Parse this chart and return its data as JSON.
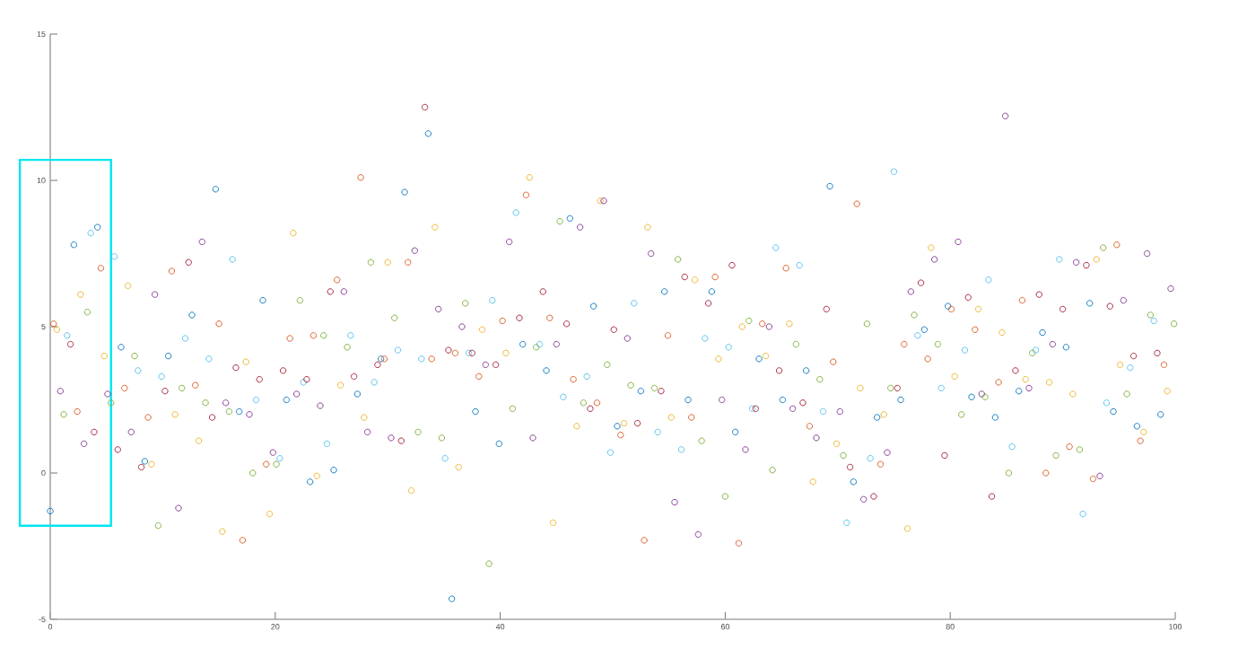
{
  "chart_data": {
    "type": "scatter",
    "marker": "circle",
    "xlim": [
      0,
      100
    ],
    "ylim": [
      -5,
      15
    ],
    "xticks": [
      0,
      20,
      40,
      60,
      80,
      100
    ],
    "yticks": [
      -5,
      0,
      5,
      10,
      15
    ],
    "x": [
      0,
      0.3,
      0.6,
      0.9,
      1.2,
      1.5,
      1.8,
      2.1,
      2.4,
      2.7,
      3,
      3.3,
      3.6,
      3.9,
      4.2,
      4.5,
      4.8,
      5.1,
      5.4,
      5.7,
      6,
      6.3,
      6.6,
      6.9,
      7.2,
      7.5,
      7.8,
      8.1,
      8.4,
      8.7,
      9,
      9.3,
      9.6,
      9.9,
      10.2,
      10.5,
      10.8,
      11.1,
      11.4,
      11.7,
      12,
      12.3,
      12.6,
      12.9,
      13.2,
      13.5,
      13.8,
      14.1,
      14.4,
      14.7,
      15,
      15.3,
      15.6,
      15.9,
      16.2,
      16.5,
      16.8,
      17.1,
      17.4,
      17.7,
      18,
      18.3,
      18.6,
      18.9,
      19.2,
      19.5,
      19.8,
      20.1,
      20.4,
      20.7,
      21,
      21.3,
      21.6,
      21.9,
      22.2,
      22.5,
      22.8,
      23.1,
      23.4,
      23.7,
      24,
      24.3,
      24.6,
      24.9,
      25.2,
      25.5,
      25.8,
      26.1,
      26.4,
      26.7,
      27,
      27.3,
      27.6,
      27.9,
      28.2,
      28.5,
      28.8,
      29.1,
      29.4,
      29.7,
      30,
      30.3,
      30.6,
      30.9,
      31.2,
      31.5,
      31.8,
      32.1,
      32.4,
      32.7,
      33,
      33.3,
      33.6,
      33.9,
      34.2,
      34.5,
      34.8,
      35.1,
      35.4,
      35.7,
      36,
      36.3,
      36.6,
      36.9,
      37.2,
      37.5,
      37.8,
      38.1,
      38.4,
      38.7,
      39,
      39.3,
      39.6,
      39.9,
      40.2,
      40.5,
      40.8,
      41.1,
      41.4,
      41.7,
      42,
      42.3,
      42.6,
      42.9,
      43.2,
      43.5,
      43.8,
      44.1,
      44.4,
      44.7,
      45,
      45.3,
      45.6,
      45.9,
      46.2,
      46.5,
      46.8,
      47.1,
      47.4,
      47.7,
      48,
      48.3,
      48.6,
      48.9,
      49.2,
      49.5,
      49.8,
      50.1,
      50.4,
      50.7,
      51,
      51.3,
      51.6,
      51.9,
      52.2,
      52.5,
      52.8,
      53.1,
      53.4,
      53.7,
      54,
      54.3,
      54.6,
      54.9,
      55.2,
      55.5,
      55.8,
      56.1,
      56.4,
      56.7,
      57,
      57.3,
      57.6,
      57.9,
      58.2,
      58.5,
      58.8,
      59.1,
      59.4,
      59.7,
      60,
      60.3,
      60.6,
      60.9,
      61.2,
      61.5,
      61.8,
      62.1,
      62.4,
      62.7,
      63,
      63.3,
      63.6,
      63.9,
      64.2,
      64.5,
      64.8,
      65.1,
      65.4,
      65.7,
      66,
      66.3,
      66.6,
      66.9,
      67.2,
      67.5,
      67.8,
      68.1,
      68.4,
      68.7,
      69,
      69.3,
      69.6,
      69.9,
      70.2,
      70.5,
      70.8,
      71.1,
      71.4,
      71.7,
      72,
      72.3,
      72.6,
      72.9,
      73.2,
      73.5,
      73.8,
      74.1,
      74.4,
      74.7,
      75,
      75.3,
      75.6,
      75.9,
      76.2,
      76.5,
      76.8,
      77.1,
      77.4,
      77.7,
      78,
      78.3,
      78.6,
      78.9,
      79.2,
      79.5,
      79.8,
      80.1,
      80.4,
      80.7,
      81,
      81.3,
      81.6,
      81.9,
      82.2,
      82.5,
      82.8,
      83.1,
      83.4,
      83.7,
      84,
      84.3,
      84.6,
      84.9,
      85.2,
      85.5,
      85.8,
      86.1,
      86.4,
      86.7,
      87,
      87.3,
      87.6,
      87.9,
      88.2,
      88.5,
      88.8,
      89.1,
      89.4,
      89.7,
      90,
      90.3,
      90.6,
      90.9,
      91.2,
      91.5,
      91.8,
      92.1,
      92.4,
      92.7,
      93,
      93.3,
      93.6,
      93.9,
      94.2,
      94.5,
      94.8,
      95.1,
      95.4,
      95.7,
      96,
      96.3,
      96.6,
      96.9,
      97.2,
      97.5,
      97.8,
      98.1,
      98.4,
      98.7,
      99,
      99.3,
      99.6,
      99.9
    ],
    "values": [
      -1.3,
      5.1,
      4.9,
      2.8,
      2.0,
      4.7,
      4.4,
      7.8,
      2.1,
      6.1,
      1.0,
      5.5,
      8.2,
      1.4,
      8.4,
      7.0,
      4.0,
      2.7,
      2.4,
      7.4,
      0.8,
      4.3,
      2.9,
      6.4,
      1.4,
      4.0,
      3.5,
      0.2,
      0.4,
      1.9,
      0.3,
      6.1,
      -1.8,
      3.3,
      2.8,
      4.0,
      6.9,
      2.0,
      -1.2,
      2.9,
      4.6,
      7.2,
      5.4,
      3.0,
      1.1,
      7.9,
      2.4,
      3.9,
      1.9,
      9.7,
      5.1,
      -2.0,
      2.4,
      2.1,
      7.3,
      3.6,
      2.1,
      -2.3,
      3.8,
      2.0,
      0.0,
      2.5,
      3.2,
      5.9,
      0.3,
      -1.4,
      0.7,
      0.3,
      0.5,
      3.5,
      2.5,
      4.6,
      8.2,
      2.7,
      5.9,
      3.1,
      3.2,
      -0.3,
      4.7,
      -0.1,
      2.3,
      4.7,
      1.0,
      6.2,
      0.1,
      6.6,
      3.0,
      6.2,
      4.3,
      4.7,
      3.3,
      2.7,
      10.1,
      1.9,
      1.4,
      7.2,
      3.1,
      3.7,
      3.9,
      3.9,
      7.2,
      1.2,
      5.3,
      4.2,
      1.1,
      9.6,
      7.2,
      -0.6,
      7.6,
      1.4,
      3.9,
      12.5,
      11.6,
      3.9,
      8.4,
      5.6,
      1.2,
      0.5,
      4.2,
      -4.3,
      4.1,
      0.2,
      5.0,
      5.8,
      4.1,
      4.1,
      2.1,
      3.3,
      4.9,
      3.7,
      -3.1,
      5.9,
      3.7,
      1.0,
      5.2,
      4.1,
      7.9,
      2.2,
      8.9,
      5.3,
      4.4,
      9.5,
      10.1,
      1.2,
      4.3,
      4.4,
      6.2,
      3.5,
      5.3,
      -1.7,
      4.4,
      8.6,
      2.6,
      5.1,
      8.7,
      3.2,
      1.6,
      8.4,
      2.4,
      3.3,
      2.2,
      5.7,
      2.4,
      9.3,
      9.3,
      3.7,
      0.7,
      4.9,
      1.6,
      1.3,
      1.7,
      4.6,
      3.0,
      5.8,
      1.7,
      2.8,
      -2.3,
      8.4,
      7.5,
      2.9,
      1.4,
      2.8,
      6.2,
      4.7,
      1.9,
      -1.0,
      7.3,
      0.8,
      6.7,
      2.5,
      1.9,
      6.6,
      -2.1,
      1.1,
      4.6,
      5.8,
      6.2,
      6.7,
      3.9,
      2.5,
      -0.8,
      4.3,
      7.1,
      1.4,
      -2.4,
      5.0,
      0.8,
      5.2,
      2.2,
      2.2,
      3.9,
      5.1,
      4.0,
      5.0,
      0.1,
      7.7,
      3.5,
      2.5,
      7.0,
      5.1,
      2.2,
      4.4,
      7.1,
      2.4,
      3.5,
      1.6,
      -0.3,
      1.2,
      3.2,
      2.1,
      5.6,
      9.8,
      3.8,
      1.0,
      2.1,
      0.6,
      -1.7,
      0.2,
      -0.3,
      9.2,
      2.9,
      -0.9,
      5.1,
      0.5,
      -0.8,
      1.9,
      0.3,
      2.0,
      0.7,
      2.9,
      10.3,
      2.9,
      2.5,
      4.4,
      -1.9,
      6.2,
      5.4,
      4.7,
      6.5,
      4.9,
      3.9,
      7.7,
      7.3,
      4.4,
      2.9,
      0.6,
      5.7,
      5.6,
      3.3,
      7.9,
      2.0,
      4.2,
      6.0,
      2.6,
      4.9,
      5.6,
      2.7,
      2.6,
      6.6,
      -0.8,
      1.9,
      3.1,
      4.8,
      12.2,
      0.0,
      0.9,
      3.5,
      2.8,
      5.9,
      3.2,
      2.9,
      4.1,
      4.2,
      6.1,
      4.8,
      0.0,
      3.1,
      4.4,
      0.6,
      7.3,
      5.6,
      4.3,
      0.9,
      2.7,
      7.2,
      0.8,
      -1.4,
      7.1,
      5.8,
      -0.2,
      7.3,
      -0.1,
      7.7,
      2.4,
      5.7,
      2.1,
      7.8,
      3.7,
      5.9,
      2.7,
      3.6,
      4.0,
      1.6,
      1.1,
      1.4,
      7.5,
      5.4,
      5.2,
      4.1,
      2.0,
      3.7,
      2.8,
      6.3,
      5.1
    ],
    "colors": [
      "#0072bd",
      "#d95319",
      "#edb120",
      "#7e2f8e",
      "#77ac30",
      "#4dbeee",
      "#a2142f",
      "#0072bd",
      "#d95319",
      "#edb120",
      "#7e2f8e",
      "#77ac30",
      "#4dbeee",
      "#a2142f",
      "#0072bd",
      "#d95319",
      "#edb120",
      "#7e2f8e",
      "#77ac30",
      "#4dbeee",
      "#a2142f",
      "#0072bd",
      "#d95319",
      "#edb120",
      "#7e2f8e",
      "#77ac30",
      "#4dbeee",
      "#a2142f",
      "#0072bd",
      "#d95319",
      "#edb120",
      "#7e2f8e",
      "#77ac30",
      "#4dbeee",
      "#a2142f",
      "#0072bd",
      "#d95319",
      "#edb120",
      "#7e2f8e",
      "#77ac30",
      "#4dbeee",
      "#a2142f",
      "#0072bd",
      "#d95319",
      "#edb120",
      "#7e2f8e",
      "#77ac30",
      "#4dbeee",
      "#a2142f",
      "#0072bd",
      "#d95319",
      "#edb120",
      "#7e2f8e",
      "#77ac30",
      "#4dbeee",
      "#a2142f",
      "#0072bd",
      "#d95319",
      "#edb120",
      "#7e2f8e",
      "#77ac30",
      "#4dbeee",
      "#a2142f",
      "#0072bd",
      "#d95319",
      "#edb120",
      "#7e2f8e",
      "#77ac30",
      "#4dbeee",
      "#a2142f",
      "#0072bd",
      "#d95319",
      "#edb120",
      "#7e2f8e",
      "#77ac30",
      "#4dbeee",
      "#a2142f",
      "#0072bd",
      "#d95319",
      "#edb120",
      "#7e2f8e",
      "#77ac30",
      "#4dbeee",
      "#a2142f",
      "#0072bd",
      "#d95319",
      "#edb120",
      "#7e2f8e",
      "#77ac30",
      "#4dbeee",
      "#a2142f",
      "#0072bd",
      "#d95319",
      "#edb120",
      "#7e2f8e",
      "#77ac30",
      "#4dbeee",
      "#a2142f",
      "#0072bd",
      "#d95319",
      "#edb120",
      "#7e2f8e",
      "#77ac30",
      "#4dbeee",
      "#a2142f",
      "#0072bd",
      "#d95319",
      "#edb120",
      "#7e2f8e",
      "#77ac30",
      "#4dbeee",
      "#a2142f",
      "#0072bd",
      "#d95319",
      "#edb120",
      "#7e2f8e",
      "#77ac30",
      "#4dbeee",
      "#a2142f",
      "#0072bd",
      "#d95319",
      "#edb120",
      "#7e2f8e",
      "#77ac30",
      "#4dbeee",
      "#a2142f",
      "#0072bd",
      "#d95319",
      "#edb120",
      "#7e2f8e",
      "#77ac30",
      "#4dbeee",
      "#a2142f",
      "#0072bd",
      "#d95319",
      "#edb120",
      "#7e2f8e",
      "#77ac30",
      "#4dbeee",
      "#a2142f",
      "#0072bd",
      "#d95319",
      "#edb120",
      "#7e2f8e",
      "#77ac30",
      "#4dbeee",
      "#a2142f",
      "#0072bd",
      "#d95319",
      "#edb120",
      "#7e2f8e",
      "#77ac30",
      "#4dbeee",
      "#a2142f",
      "#0072bd",
      "#d95319",
      "#edb120",
      "#7e2f8e",
      "#77ac30",
      "#4dbeee",
      "#a2142f",
      "#0072bd",
      "#d95319",
      "#edb120",
      "#7e2f8e",
      "#77ac30",
      "#4dbeee",
      "#a2142f",
      "#0072bd",
      "#d95319",
      "#edb120",
      "#7e2f8e",
      "#77ac30",
      "#4dbeee",
      "#a2142f",
      "#0072bd",
      "#d95319",
      "#edb120",
      "#7e2f8e",
      "#77ac30",
      "#4dbeee",
      "#a2142f",
      "#0072bd",
      "#d95319",
      "#edb120",
      "#7e2f8e",
      "#77ac30",
      "#4dbeee",
      "#a2142f",
      "#0072bd",
      "#d95319",
      "#edb120",
      "#7e2f8e",
      "#77ac30",
      "#4dbeee",
      "#a2142f",
      "#0072bd",
      "#d95319",
      "#edb120",
      "#7e2f8e",
      "#77ac30",
      "#4dbeee",
      "#a2142f",
      "#0072bd",
      "#d95319",
      "#edb120",
      "#7e2f8e",
      "#77ac30",
      "#4dbeee",
      "#a2142f",
      "#0072bd",
      "#d95319",
      "#edb120",
      "#7e2f8e",
      "#77ac30",
      "#4dbeee",
      "#a2142f",
      "#0072bd",
      "#d95319",
      "#edb120",
      "#7e2f8e",
      "#77ac30",
      "#4dbeee",
      "#a2142f",
      "#0072bd",
      "#d95319",
      "#edb120",
      "#7e2f8e",
      "#77ac30",
      "#4dbeee",
      "#a2142f",
      "#0072bd",
      "#d95319",
      "#edb120",
      "#7e2f8e",
      "#77ac30",
      "#4dbeee",
      "#a2142f",
      "#0072bd",
      "#d95319",
      "#edb120",
      "#7e2f8e",
      "#77ac30",
      "#4dbeee",
      "#a2142f",
      "#0072bd",
      "#d95319",
      "#edb120",
      "#7e2f8e",
      "#77ac30",
      "#4dbeee",
      "#a2142f",
      "#0072bd",
      "#d95319",
      "#edb120",
      "#7e2f8e",
      "#77ac30",
      "#4dbeee",
      "#a2142f",
      "#0072bd",
      "#d95319",
      "#edb120",
      "#7e2f8e",
      "#77ac30",
      "#4dbeee",
      "#a2142f",
      "#0072bd",
      "#d95319",
      "#edb120",
      "#7e2f8e",
      "#77ac30",
      "#4dbeee",
      "#a2142f",
      "#0072bd",
      "#d95319",
      "#edb120",
      "#7e2f8e",
      "#77ac30",
      "#4dbeee",
      "#a2142f",
      "#0072bd",
      "#d95319",
      "#edb120",
      "#7e2f8e",
      "#77ac30",
      "#4dbeee",
      "#a2142f",
      "#0072bd",
      "#d95319",
      "#edb120",
      "#7e2f8e",
      "#77ac30",
      "#4dbeee",
      "#a2142f",
      "#0072bd",
      "#d95319",
      "#edb120",
      "#7e2f8e",
      "#77ac30",
      "#4dbeee",
      "#a2142f",
      "#0072bd",
      "#d95319",
      "#edb120",
      "#7e2f8e",
      "#77ac30",
      "#4dbeee",
      "#a2142f",
      "#0072bd",
      "#d95319",
      "#edb120",
      "#7e2f8e",
      "#77ac30",
      "#4dbeee",
      "#a2142f",
      "#0072bd",
      "#d95319",
      "#edb120",
      "#7e2f8e",
      "#77ac30",
      "#4dbeee",
      "#a2142f",
      "#0072bd",
      "#d95319",
      "#edb120",
      "#7e2f8e",
      "#77ac30",
      "#4dbeee",
      "#a2142f",
      "#0072bd",
      "#d95319",
      "#edb120",
      "#7e2f8e",
      "#77ac30"
    ]
  }
}
